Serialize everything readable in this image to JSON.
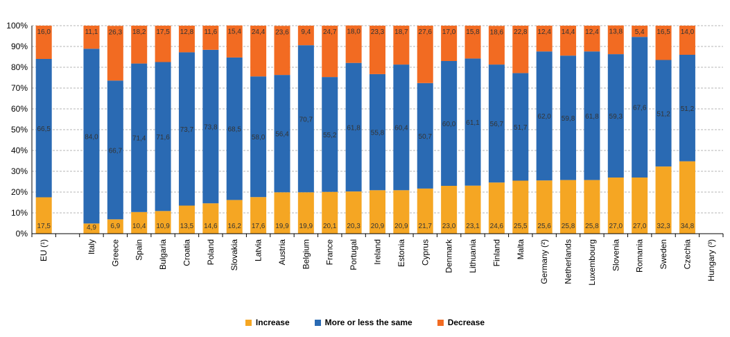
{
  "chart_data": {
    "type": "bar",
    "stacked": true,
    "percent": true,
    "categories": [
      "EU (¹)",
      "",
      "Italy",
      "Greece",
      "Spain",
      "Bulgaria",
      "Croatia",
      "Poland",
      "Slovakia",
      "Latvia",
      "Austria",
      "Belgium",
      "France",
      "Portugal",
      "Ireland",
      "Estonia",
      "Cyprus",
      "Denmark",
      "Lithuania",
      "Finland",
      "Malta",
      "Germany (²)",
      "Netherlands",
      "Luxembourg",
      "Slovenia",
      "Romania",
      "Sweden",
      "Czechia",
      "Hungary (³)"
    ],
    "series": [
      {
        "name": "Increase",
        "color": "#f5a623",
        "values": [
          17.5,
          null,
          4.9,
          6.9,
          10.4,
          10.9,
          13.5,
          14.6,
          16.2,
          17.6,
          19.9,
          19.9,
          20.1,
          20.3,
          20.9,
          20.9,
          21.7,
          23.0,
          23.1,
          24.6,
          25.5,
          25.6,
          25.8,
          25.8,
          27.0,
          27.0,
          32.3,
          34.8,
          null
        ],
        "labels": [
          "17,5",
          "",
          "4,9",
          "6,9",
          "10,4",
          "10,9",
          "13,5",
          "14,6",
          "16,2",
          "17,6",
          "19,9",
          "19,9",
          "20,1",
          "20,3",
          "20,9",
          "20,9",
          "21,7",
          "23,0",
          "23,1",
          "24,6",
          "25,5",
          "25,6",
          "25,8",
          "25,8",
          "27,0",
          "27,0",
          "32,3",
          "34,8",
          ""
        ]
      },
      {
        "name": "More or less the same",
        "color": "#2a6ab3",
        "values": [
          66.5,
          null,
          84.0,
          66.7,
          71.4,
          71.6,
          73.7,
          73.8,
          68.5,
          58.0,
          56.4,
          70.7,
          55.2,
          61.8,
          55.8,
          60.4,
          50.7,
          60.0,
          61.1,
          56.7,
          51.7,
          62.0,
          59.8,
          61.8,
          59.3,
          67.6,
          51.2,
          51.2,
          null
        ],
        "labels": [
          "66,5",
          "",
          "84,0",
          "66,7",
          "71,4",
          "71,6",
          "73,7",
          "73,8",
          "68,5",
          "58,0",
          "56,4",
          "70,7",
          "55,2",
          "61,8",
          "55,8",
          "60,4",
          "50,7",
          "60,0",
          "61,1",
          "56,7",
          "51,7",
          "62,0",
          "59,8",
          "61,8",
          "59,3",
          "67,6",
          "51,2",
          "51,2",
          ""
        ]
      },
      {
        "name": "Decrease",
        "color": "#f26b22",
        "values": [
          16.0,
          null,
          11.1,
          26.3,
          18.2,
          17.5,
          12.8,
          11.6,
          15.4,
          24.4,
          23.6,
          9.4,
          24.7,
          18.0,
          23.3,
          18.7,
          27.6,
          17.0,
          15.8,
          18.6,
          22.8,
          12.4,
          14.4,
          12.4,
          13.8,
          5.4,
          16.5,
          14.0,
          null
        ],
        "labels": [
          "16,0",
          "",
          "11,1",
          "26,3",
          "18,2",
          "17,5",
          "12,8",
          "11,6",
          "15,4",
          "24,4",
          "23,6",
          "9,4",
          "24,7",
          "18,0",
          "23,3",
          "18,7",
          "27,6",
          "17,0",
          "15,8",
          "18,6",
          "22,8",
          "12,4",
          "14,4",
          "12,4",
          "13,8",
          "5,4",
          "16,5",
          "14,0",
          ""
        ]
      }
    ],
    "y_ticks": [
      "0%",
      "10%",
      "20%",
      "30%",
      "40%",
      "50%",
      "60%",
      "70%",
      "80%",
      "90%",
      "100%"
    ],
    "ylim": [
      0,
      100
    ],
    "grid": true,
    "legend_position": "bottom"
  }
}
